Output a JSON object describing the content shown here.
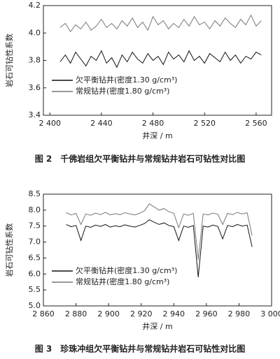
{
  "chart_data": [
    {
      "type": "line",
      "xlabel": "井深 / m",
      "ylabel": "岩石可钻性系数",
      "caption": "图 2　千佛岩组欠平衡钻井与常规钻井岩石可钻性对比图",
      "legend": "lower left",
      "xlim": [
        2395,
        2572
      ],
      "ylim": [
        3.4,
        4.2
      ],
      "xticks": [
        {
          "value": 2400,
          "label": "2 400"
        },
        {
          "value": 2440,
          "label": "2 440"
        },
        {
          "value": 2480,
          "label": "2 480"
        },
        {
          "value": 2520,
          "label": "2 520"
        },
        {
          "value": 2560,
          "label": "2 560"
        }
      ],
      "yticks": [
        3.4,
        3.6,
        3.8,
        {
          "value": 4,
          "label": "4.0"
        },
        4.2
      ],
      "x": [
        2408,
        2412,
        2416,
        2420,
        2424,
        2428,
        2432,
        2436,
        2440,
        2444,
        2448,
        2452,
        2456,
        2460,
        2464,
        2468,
        2472,
        2476,
        2480,
        2484,
        2488,
        2492,
        2496,
        2500,
        2504,
        2508,
        2512,
        2516,
        2520,
        2524,
        2528,
        2532,
        2536,
        2540,
        2544,
        2548,
        2552,
        2556,
        2560,
        2564
      ],
      "series": [
        {
          "name": "欠平衡钻井(密度1.30 g/cm³)",
          "color": "#111111",
          "values": [
            3.79,
            3.84,
            3.78,
            3.86,
            3.81,
            3.76,
            3.83,
            3.8,
            3.87,
            3.78,
            3.82,
            3.75,
            3.84,
            3.79,
            3.86,
            3.81,
            3.78,
            3.85,
            3.8,
            3.83,
            3.77,
            3.86,
            3.81,
            3.84,
            3.79,
            3.87,
            3.8,
            3.83,
            3.78,
            3.85,
            3.82,
            3.79,
            3.86,
            3.8,
            3.84,
            3.78,
            3.83,
            3.81,
            3.86,
            3.84
          ]
        },
        {
          "name": "常规钻井(密度1.80 g/cm³)",
          "color": "#777777",
          "values": [
            4.04,
            4.07,
            4.01,
            4.06,
            4.03,
            4.08,
            4.02,
            4.05,
            4.1,
            4.04,
            4.07,
            4.03,
            4.09,
            4.05,
            4.11,
            4.04,
            4.08,
            4.02,
            4.12,
            4.06,
            4.09,
            4.03,
            4.07,
            4.04,
            4.1,
            4.05,
            4.12,
            4.06,
            4.08,
            4.03,
            4.09,
            4.05,
            4.11,
            4.07,
            4.04,
            4.1,
            4.06,
            4.13,
            4.05,
            4.09
          ]
        }
      ]
    },
    {
      "type": "line",
      "xlabel": "井深 / m",
      "ylabel": "岩石可钻性系数",
      "caption": "图 3　珍珠冲组欠平衡钻井与常规钻井岩石可钻性对比图",
      "legend": "lower left",
      "xlim": [
        2860,
        3000
      ],
      "ylim": [
        5,
        8.5
      ],
      "xticks": [
        {
          "value": 2860,
          "label": "2 860"
        },
        {
          "value": 2880,
          "label": "2 880"
        },
        {
          "value": 2900,
          "label": "2 900"
        },
        {
          "value": 2920,
          "label": "2 920"
        },
        {
          "value": 2940,
          "label": "2 940"
        },
        {
          "value": 2960,
          "label": "2 960"
        },
        {
          "value": 2980,
          "label": "2 980"
        },
        {
          "value": 3000,
          "label": "3 000"
        }
      ],
      "yticks": [
        {
          "value": 5,
          "label": "5.0"
        },
        5.5,
        {
          "value": 6,
          "label": "6.0"
        },
        6.5,
        {
          "value": 7,
          "label": "7.0"
        },
        7.5,
        {
          "value": 8,
          "label": "8.0"
        },
        8.5
      ],
      "x": [
        2874,
        2877,
        2880,
        2883,
        2886,
        2889,
        2892,
        2895,
        2898,
        2901,
        2904,
        2907,
        2910,
        2913,
        2916,
        2919,
        2922,
        2925,
        2928,
        2931,
        2934,
        2937,
        2940,
        2943,
        2946,
        2949,
        2952,
        2955,
        2958,
        2961,
        2964,
        2967,
        2970,
        2973,
        2976,
        2979,
        2982,
        2985,
        2988
      ],
      "series": [
        {
          "name": "欠平衡钻井(密度1.30 g/cm³)",
          "color": "#111111",
          "values": [
            7.55,
            7.48,
            7.52,
            7.05,
            7.5,
            7.46,
            7.53,
            7.49,
            7.55,
            7.47,
            7.51,
            7.48,
            7.54,
            7.5,
            7.47,
            7.52,
            7.58,
            7.7,
            7.62,
            7.55,
            7.6,
            7.52,
            7.48,
            7.05,
            7.5,
            7.46,
            7.52,
            5.9,
            7.5,
            7.47,
            7.53,
            7.49,
            7.1,
            7.52,
            7.48,
            7.55,
            7.5,
            7.53,
            6.85
          ]
        },
        {
          "name": "常规钻井(密度1.80 g/cm³)",
          "color": "#777777",
          "values": [
            7.92,
            7.85,
            7.9,
            7.55,
            7.88,
            7.84,
            7.91,
            7.86,
            7.93,
            7.85,
            7.89,
            7.86,
            7.92,
            7.88,
            7.85,
            7.9,
            7.98,
            8.2,
            8.1,
            8.0,
            8.05,
            7.95,
            7.9,
            7.45,
            7.88,
            7.84,
            7.9,
            6.45,
            7.88,
            7.85,
            7.91,
            7.87,
            7.55,
            7.9,
            7.86,
            7.93,
            7.88,
            7.92,
            7.2
          ]
        }
      ]
    }
  ]
}
